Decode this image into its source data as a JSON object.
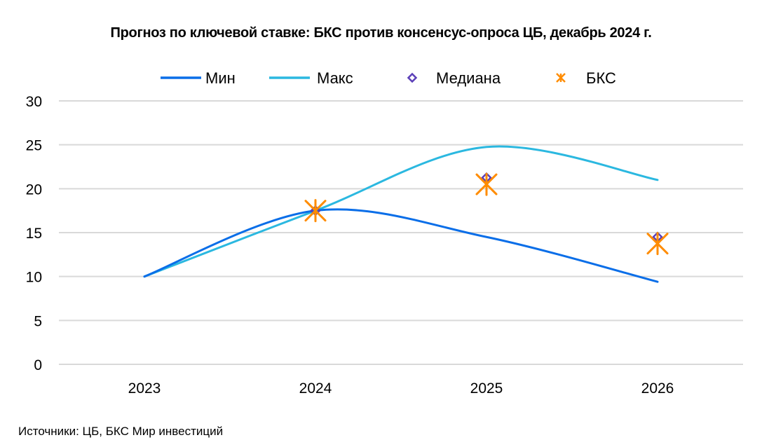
{
  "chart_data": {
    "type": "line",
    "title": "Прогноз по ключевой ставке: БКС против консенсус-опроса ЦБ, декабрь 2024 г.",
    "xlabel": "",
    "ylabel": "",
    "categories": [
      "2023",
      "2024",
      "2025",
      "2026"
    ],
    "ylim": [
      0,
      30
    ],
    "yticks": [
      "0",
      "5",
      "10",
      "15",
      "20",
      "25",
      "30"
    ],
    "grid": true,
    "legend_position": "top",
    "series": [
      {
        "name": "Мин",
        "kind": "line",
        "color": "#0a6ee8",
        "values": [
          10,
          17.5,
          14.5,
          9.4
        ]
      },
      {
        "name": "Макс",
        "kind": "line",
        "color": "#2bb8e0",
        "values": [
          10,
          17.5,
          24.75,
          21
        ]
      },
      {
        "name": "Медиана",
        "kind": "marker-diamond",
        "color": "#5b3fb8",
        "values": [
          null,
          17.5,
          21.25,
          14.5
        ]
      },
      {
        "name": "БКС",
        "kind": "marker-asterisk",
        "color": "#ff8c00",
        "values": [
          null,
          17.5,
          20.5,
          13.75
        ]
      }
    ]
  },
  "source": "Источники: ЦБ, БКС Мир инвестиций"
}
